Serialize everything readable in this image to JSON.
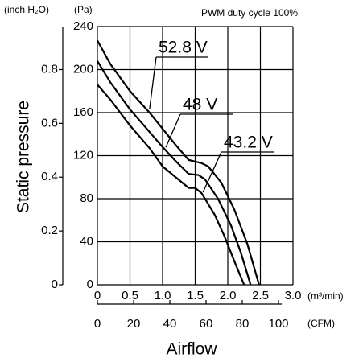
{
  "chart_data": {
    "type": "line",
    "title": "PWM duty cycle 100%",
    "y_label": "Static pressure",
    "y_unit": "(Pa)",
    "y2_unit": "(inch H₂O)",
    "x_label": "Airflow",
    "x_unit": "(m³/min)",
    "x2_unit": "(CFM)",
    "xlim": [
      0,
      3.0
    ],
    "xticks": [
      0,
      0.5,
      {
        "value": 1,
        "label": "1.0"
      },
      1.5,
      {
        "value": 2,
        "label": "2.0"
      },
      2.5,
      {
        "value": 3,
        "label": "3.0"
      }
    ],
    "ylim": [
      0,
      240
    ],
    "yticks": [
      0,
      40,
      80,
      120,
      160,
      200,
      240
    ],
    "y2lim": [
      0,
      0.96
    ],
    "y2ticks": [
      0,
      0.2,
      0.4,
      0.6,
      0.8
    ],
    "x2lim": [
      0,
      108
    ],
    "x2ticks": [
      0,
      20,
      40,
      60,
      80,
      100
    ],
    "grid": true,
    "series": [
      {
        "name": "52.8 V",
        "color": "#000000",
        "x": [
          0,
          0.2,
          0.5,
          0.8,
          1.0,
          1.2,
          1.4,
          1.6,
          1.7,
          1.9,
          2.1,
          2.3,
          2.48
        ],
        "values": [
          227,
          205,
          180,
          160,
          145,
          130,
          116,
          113,
          110,
          95,
          70,
          38,
          0
        ]
      },
      {
        "name": "48 V",
        "color": "#000000",
        "x": [
          0,
          0.2,
          0.5,
          0.8,
          1.0,
          1.2,
          1.4,
          1.55,
          1.65,
          1.85,
          2.05,
          2.2,
          2.35
        ],
        "values": [
          208,
          188,
          163,
          142,
          128,
          115,
          103,
          102,
          98,
          80,
          55,
          30,
          0
        ]
      },
      {
        "name": "43.2 V",
        "color": "#000000",
        "x": [
          0,
          0.2,
          0.5,
          0.8,
          1.0,
          1.2,
          1.4,
          1.5,
          1.6,
          1.8,
          1.95,
          2.1,
          2.25
        ],
        "values": [
          186,
          172,
          148,
          127,
          110,
          100,
          90,
          90,
          85,
          65,
          45,
          22,
          0
        ]
      }
    ]
  }
}
